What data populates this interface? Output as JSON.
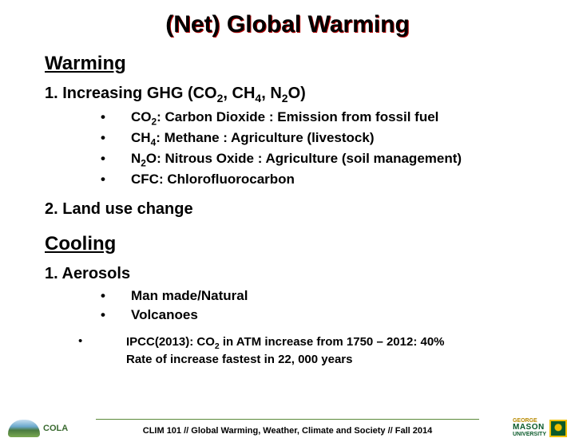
{
  "title": "(Net) Global Warming",
  "warming": {
    "heading": "Warming",
    "item1": {
      "prefix": "1. Increasing GHG (CO",
      "sub1": "2",
      "mid1": ", CH",
      "sub2": "4",
      "mid2": ", N",
      "sub3": "2",
      "suffix": "O)"
    },
    "bullets": [
      {
        "prefix": "CO",
        "sub": "2",
        "rest": ": Carbon Dioxide : Emission from fossil fuel"
      },
      {
        "prefix": "CH",
        "sub": "4",
        "rest": ": Methane : Agriculture (livestock)"
      },
      {
        "prefix": "N",
        "sub": "2",
        "rest": "O: Nitrous Oxide : Agriculture (soil management)"
      },
      {
        "prefix": "CFC: Chlorofluorocarbon",
        "sub": "",
        "rest": ""
      }
    ],
    "item2": "2. Land use change"
  },
  "cooling": {
    "heading": "Cooling",
    "item1": "1.  Aerosols",
    "bullets": [
      "Man made/Natural",
      "Volcanoes"
    ]
  },
  "ipcc": {
    "line1_a": "IPCC(2013): CO",
    "line1_sub": "2",
    "line1_b": " in ATM increase from 1750 – 2012: 40%",
    "line2": "Rate of increase fastest in 22, 000 years"
  },
  "footer": "CLIM 101 // Global Warming, Weather, Climate and Society // Fall 2014",
  "logos": {
    "left": "COLA",
    "right_top": "GEORGE",
    "right_mid": "MASON",
    "right_bot": "UNIVERSITY"
  }
}
